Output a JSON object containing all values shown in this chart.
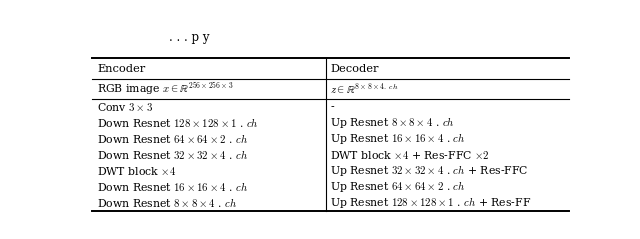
{
  "col_headers": [
    "Encoder",
    "Decoder"
  ],
  "row_input": [
    "RGB image $x \\in \\mathbb{R}^{256\\times256\\times3}$",
    "$z \\in \\mathbb{R}^{8\\times8\\times4.\\ \\mathit{ch}}$"
  ],
  "encoder_rows": [
    "Conv $3 \\times 3$",
    "Down Resnet $128 \\times 128 \\times 1$ . $\\mathit{ch}$",
    "Down Resnet $64 \\times 64 \\times 2$ . $\\mathit{ch}$",
    "Down Resnet $32 \\times 32 \\times 4$ . $\\mathit{ch}$",
    "DWT block $\\times 4$",
    "Down Resnet $16 \\times 16 \\times 4$ . $\\mathit{ch}$",
    "Down Resnet $8 \\times 8 \\times 4$ . $\\mathit{ch}$"
  ],
  "decoder_rows": [
    "-",
    "Up Resnet $8 \\times 8 \\times 4$ . $\\mathit{ch}$",
    "Up Resnet $16 \\times 16 \\times 4$ . $\\mathit{ch}$",
    "DWT block $\\times 4$ + Res-FFC $\\times 2$",
    "Up Resnet $32 \\times 32 \\times 4$ . $\\mathit{ch}$ + Res-FFC",
    "Up Resnet $64 \\times 64 \\times 2$ . $\\mathit{ch}$",
    "Up Resnet $128 \\times 128 \\times 1$ . $\\mathit{ch}$ + Res-FF"
  ],
  "caption_partial": "p y",
  "bg_color": "#ffffff",
  "text_color": "#000000",
  "font_size": 7.8,
  "header_font_size": 8.2,
  "caption_font_size": 8.5
}
